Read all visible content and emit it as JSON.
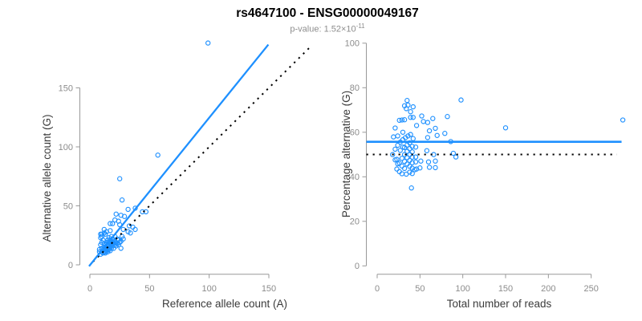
{
  "header": {
    "title": "rs4647100 - ENSG00000049167",
    "pvalue_prefix": "p-value: ",
    "pvalue_base": "1.52×10",
    "pvalue_exponent": "-11"
  },
  "colors": {
    "accent": "#1E90FF",
    "axis_line": "#999999",
    "tick_label": "#8c8c8c",
    "axis_title": "#3b3b3b",
    "line_black": "#000000"
  },
  "samples": {
    "pairs_ref_alt": [
      [
        99,
        188
      ],
      [
        57,
        93
      ],
      [
        25,
        73
      ],
      [
        26,
        14
      ],
      [
        21,
        38
      ],
      [
        24,
        37
      ],
      [
        29,
        41
      ],
      [
        32,
        47
      ],
      [
        38,
        48
      ],
      [
        44,
        45
      ],
      [
        47,
        45
      ],
      [
        36,
        32
      ],
      [
        38,
        30
      ],
      [
        28,
        30
      ],
      [
        33,
        33
      ],
      [
        22,
        43
      ],
      [
        26,
        42
      ],
      [
        19,
        35
      ],
      [
        17,
        35
      ],
      [
        25,
        34
      ],
      [
        34,
        27
      ],
      [
        27,
        24
      ],
      [
        32,
        28
      ],
      [
        27,
        55
      ],
      [
        17,
        29
      ],
      [
        12,
        27
      ],
      [
        9,
        26
      ],
      [
        9,
        23
      ],
      [
        10,
        24
      ],
      [
        10,
        26
      ],
      [
        12,
        30
      ],
      [
        14,
        28
      ],
      [
        13,
        26
      ],
      [
        26,
        20
      ],
      [
        28,
        22
      ],
      [
        25,
        19
      ],
      [
        10,
        11
      ],
      [
        11,
        13
      ],
      [
        12,
        15
      ],
      [
        12,
        11
      ],
      [
        13,
        14
      ],
      [
        13,
        17
      ],
      [
        14,
        12
      ],
      [
        14,
        16
      ],
      [
        14,
        19
      ],
      [
        15,
        14
      ],
      [
        15,
        17
      ],
      [
        15,
        21
      ],
      [
        16,
        13
      ],
      [
        16,
        16
      ],
      [
        16,
        19
      ],
      [
        17,
        15
      ],
      [
        17,
        18
      ],
      [
        17,
        21
      ],
      [
        18,
        14
      ],
      [
        18,
        17
      ],
      [
        18,
        20
      ],
      [
        18,
        24
      ],
      [
        19,
        16
      ],
      [
        19,
        19
      ],
      [
        19,
        22
      ],
      [
        20,
        14
      ],
      [
        20,
        18
      ],
      [
        20,
        21
      ],
      [
        21,
        17
      ],
      [
        21,
        20
      ],
      [
        21,
        24
      ],
      [
        22,
        16
      ],
      [
        22,
        19
      ],
      [
        23,
        18
      ],
      [
        23,
        22
      ],
      [
        24,
        17
      ],
      [
        24,
        21
      ],
      [
        13,
        11
      ],
      [
        11,
        10
      ],
      [
        10,
        14
      ],
      [
        12,
        18
      ],
      [
        16,
        23
      ],
      [
        17,
        12
      ],
      [
        9,
        9
      ],
      [
        8,
        11
      ],
      [
        8,
        13
      ],
      [
        9,
        17
      ],
      [
        10,
        19
      ],
      [
        11,
        21
      ],
      [
        13,
        10
      ],
      [
        15,
        11
      ]
    ]
  },
  "chart_data": [
    {
      "type": "scatter",
      "xlabel": "Reference allele count (A)",
      "ylabel": "Alternative allele count (G)",
      "xticks": [
        0,
        50,
        100,
        150
      ],
      "yticks": [
        0,
        50,
        100,
        150
      ],
      "points_from": "samples.pairs_ref_alt",
      "x": "ref",
      "y": "alt",
      "grid": false,
      "regression_line": {
        "slope": 1.25,
        "intercept": -0.3,
        "x_range": [
          -0.7,
          149.6
        ]
      },
      "identity_line": {
        "slope": 1,
        "intercept": 0,
        "style": "dotted",
        "x_range": [
          2.7,
          186
        ]
      }
    },
    {
      "type": "scatter",
      "xlabel": "Total number of reads",
      "ylabel": "Percentage alternative (G)",
      "xticks": [
        0,
        50,
        100,
        150,
        200,
        250
      ],
      "yticks": [
        0,
        20,
        40,
        60,
        80,
        100
      ],
      "points_from": "samples.pairs_ref_alt",
      "x": "ref+alt",
      "y": "100*alt/(ref+alt)",
      "grid": false,
      "mean_line": {
        "value": 55.7,
        "x_range": [
          -12.6,
          285.5
        ]
      },
      "reference_line": {
        "value": 50,
        "style": "dotted",
        "x_range": [
          -12.6,
          280
        ]
      }
    }
  ]
}
